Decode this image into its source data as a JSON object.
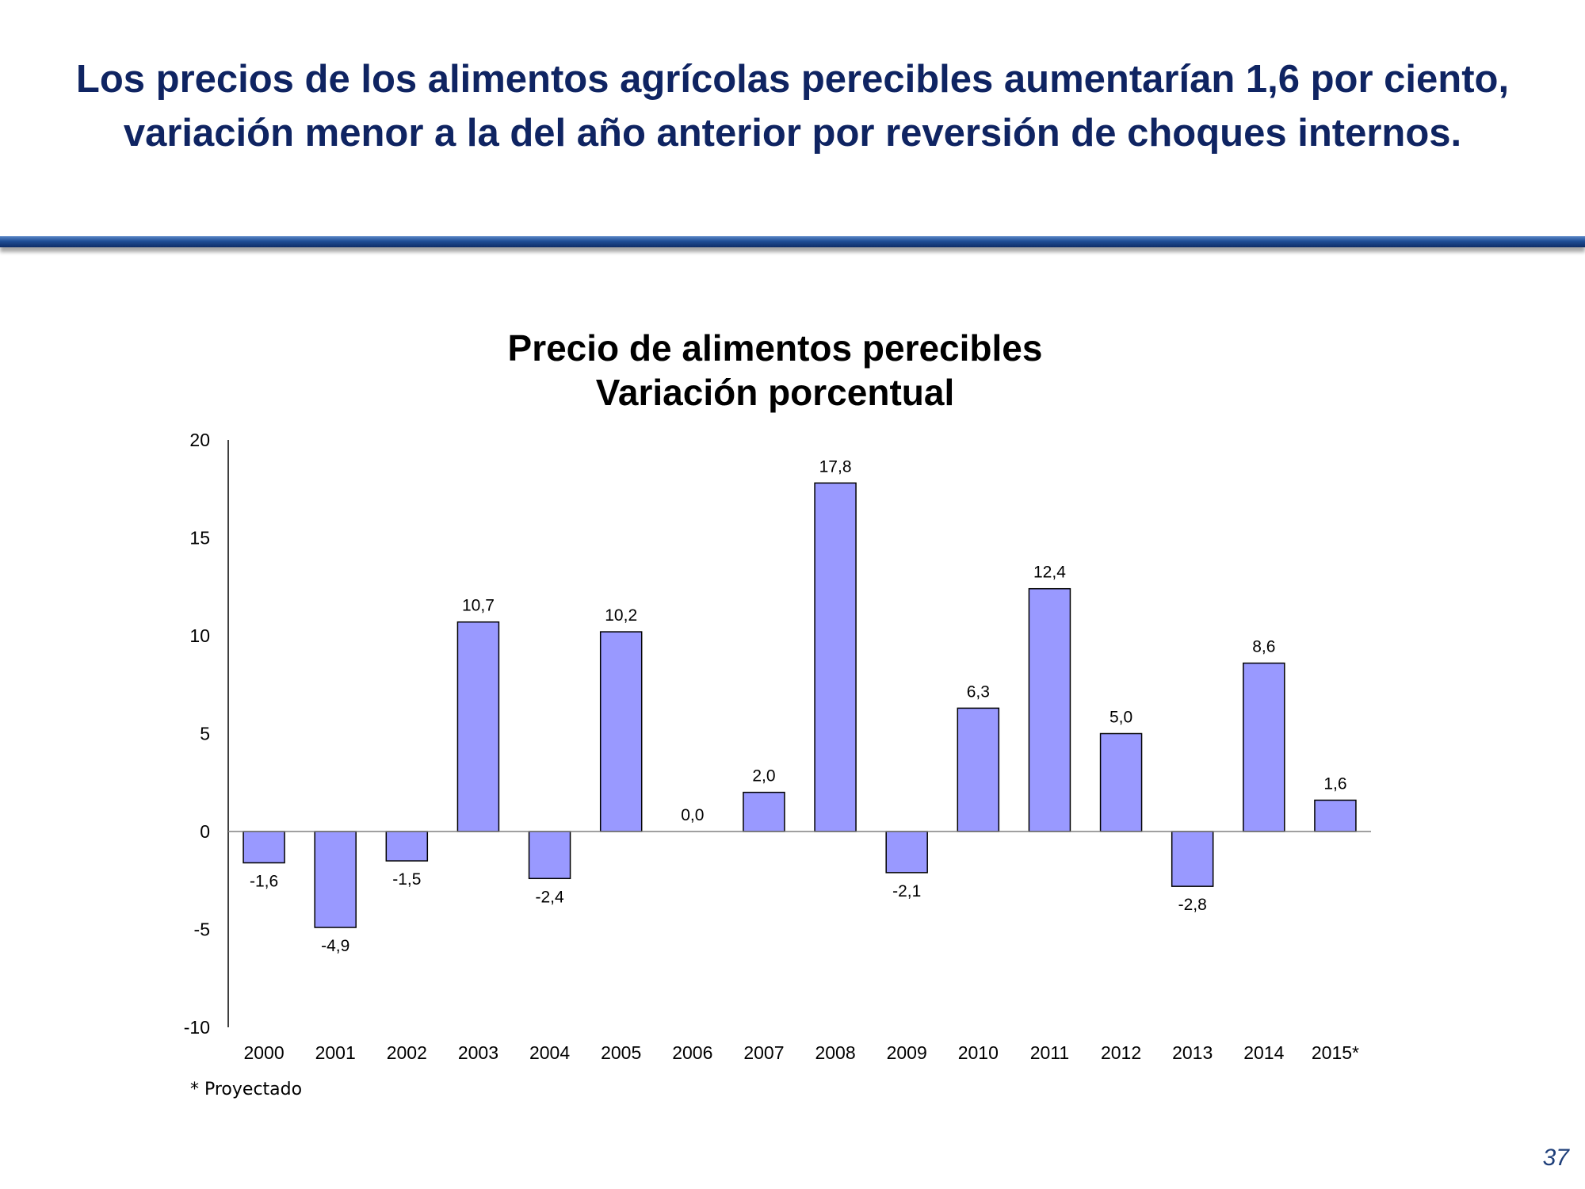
{
  "slide": {
    "title": "Los precios de los alimentos agrícolas perecibles aumentarían 1,6 por ciento, variación menor a la del año anterior por reversión de choques internos.",
    "footnote": "* Proyectado",
    "page_number": "37"
  },
  "colors": {
    "title": "#0f2462",
    "bar_fill": "#9999ff",
    "bar_stroke": "#000000",
    "axis": "#000000",
    "zero_line": "#808080"
  },
  "chart_data": {
    "type": "bar",
    "title_lines": [
      "Precio de alimentos perecibles",
      "Variación porcentual"
    ],
    "categories": [
      "2000",
      "2001",
      "2002",
      "2003",
      "2004",
      "2005",
      "2006",
      "2007",
      "2008",
      "2009",
      "2010",
      "2011",
      "2012",
      "2013",
      "2014",
      "2015*"
    ],
    "values": [
      -1.6,
      -4.9,
      -1.5,
      10.7,
      -2.4,
      10.2,
      0.0,
      2.0,
      17.8,
      -2.1,
      6.3,
      12.4,
      5.0,
      -2.8,
      8.6,
      1.6
    ],
    "data_labels": [
      "-1,6",
      "-4,9",
      "-1,5",
      "10,7",
      "-2,4",
      "10,2",
      "0,0",
      "2,0",
      "17,8",
      "-2,1",
      "6,3",
      "12,4",
      "5,0",
      "-2,8",
      "8,6",
      "1,6"
    ],
    "yticks": [
      20,
      15,
      10,
      5,
      0,
      -5,
      -10
    ],
    "ylim": [
      -10,
      20
    ],
    "xlabel": "",
    "ylabel": "",
    "grid": false,
    "legend": "none"
  }
}
